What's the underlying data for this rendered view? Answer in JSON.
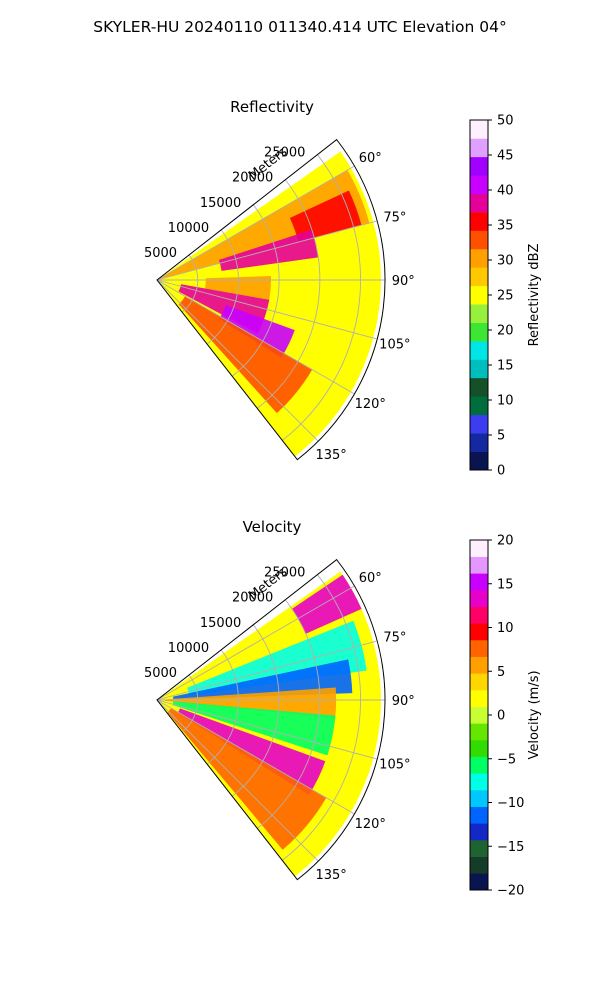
{
  "suptitle": "SKYLER-HU  20240110  011340.414 UTC Elevation 04°",
  "chart_data": [
    {
      "type": "heatmap",
      "projection": "polar-sector",
      "title": "Reflectivity",
      "range_label": "Meters",
      "range_ticks": [
        "5000",
        "10000",
        "15000",
        "20000",
        "25000"
      ],
      "range_tick_values": [
        5000,
        10000,
        15000,
        20000,
        25000
      ],
      "range_max": 28000,
      "azimuth_ticks": [
        "60°",
        "75°",
        "90°",
        "105°",
        "120°",
        "135°"
      ],
      "azimuth_tick_values": [
        60,
        75,
        90,
        105,
        120,
        135
      ],
      "azimuth_range": [
        52,
        142
      ],
      "grid": true,
      "colorbar": {
        "label": "Reflectivity dBZ",
        "min": 0,
        "max": 50,
        "ticks": [
          0,
          5,
          10,
          15,
          20,
          25,
          30,
          35,
          40,
          45,
          50
        ],
        "colors": [
          "#0a1450",
          "#1428a0",
          "#3c3cf0",
          "#006e3c",
          "#145028",
          "#00bebe",
          "#00e6e6",
          "#3ce632",
          "#96f03c",
          "#ffff00",
          "#ffc800",
          "#ffa000",
          "#ff5000",
          "#ff0000",
          "#e6009a",
          "#c800ff",
          "#a000ff",
          "#e0a0ff",
          "#fff0ff"
        ]
      },
      "field": [
        {
          "az": [
            55,
            142
          ],
          "rmax": 27500,
          "level": 24
        },
        {
          "az": [
            60,
            75
          ],
          "rmax": 27000,
          "level": 29
        },
        {
          "az": [
            65,
            75
          ],
          "r": [
            18000,
            26000
          ],
          "level": 36
        },
        {
          "az": [
            72,
            82
          ],
          "r": [
            8000,
            20000
          ],
          "level": 37
        },
        {
          "az": [
            88,
            100
          ],
          "r": [
            6000,
            14000
          ],
          "level": 30
        },
        {
          "az": [
            100,
            118
          ],
          "r": [
            3000,
            14000
          ],
          "level": 37
        },
        {
          "az": [
            110,
            122
          ],
          "r": [
            9000,
            18000
          ],
          "level": 41
        },
        {
          "az": [
            120,
            138
          ],
          "r": [
            4000,
            22000
          ],
          "level": 33
        }
      ]
    },
    {
      "type": "heatmap",
      "projection": "polar-sector",
      "title": "Velocity",
      "range_label": "Meters",
      "range_ticks": [
        "5000",
        "10000",
        "15000",
        "20000",
        "25000"
      ],
      "range_tick_values": [
        5000,
        10000,
        15000,
        20000,
        25000
      ],
      "range_max": 28000,
      "azimuth_ticks": [
        "60°",
        "75°",
        "90°",
        "105°",
        "120°",
        "135°"
      ],
      "azimuth_tick_values": [
        60,
        75,
        90,
        105,
        120,
        135
      ],
      "azimuth_range": [
        52,
        142
      ],
      "grid": true,
      "colorbar": {
        "label": "Velocity (m/s)",
        "min": -20,
        "max": 20,
        "ticks": [
          -20,
          -15,
          -10,
          -5,
          0,
          5,
          10,
          15,
          20
        ],
        "colors": [
          "#0a1450",
          "#143c28",
          "#1e6432",
          "#1428c8",
          "#0064ff",
          "#00c8ff",
          "#00ffe6",
          "#00ff64",
          "#32dc00",
          "#64e600",
          "#c8ff32",
          "#ffff00",
          "#ffd700",
          "#ffa000",
          "#ff6400",
          "#ff0000",
          "#ff0064",
          "#e600c8",
          "#c800ff",
          "#e696ff",
          "#fff0ff"
        ]
      },
      "field": [
        {
          "az": [
            55,
            142
          ],
          "rmax": 27500,
          "level": 1
        },
        {
          "az": [
            68,
            82
          ],
          "r": [
            4000,
            26000
          ],
          "level": -7
        },
        {
          "az": [
            78,
            88
          ],
          "r": [
            2000,
            24000
          ],
          "level": -11
        },
        {
          "az": [
            86,
            96
          ],
          "r": [
            1000,
            22000
          ],
          "level": 6
        },
        {
          "az": [
            95,
            108
          ],
          "r": [
            2000,
            22000
          ],
          "level": -5
        },
        {
          "az": [
            110,
            122
          ],
          "r": [
            3000,
            22000
          ],
          "level": 13
        },
        {
          "az": [
            120,
            140
          ],
          "r": [
            2000,
            24000
          ],
          "level": 8
        },
        {
          "az": [
            56,
            66
          ],
          "r": [
            20000,
            27500
          ],
          "level": 14
        }
      ]
    }
  ]
}
